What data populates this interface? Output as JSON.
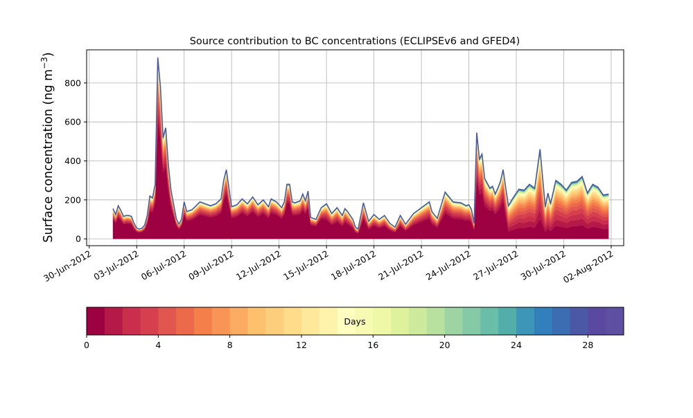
{
  "chart_data": {
    "type": "area",
    "stacked": true,
    "title": "Source contribution to BC concentrations (ECLIPSEv6 and GFED4)",
    "ylabel": "Surface concentration (ng m",
    "ylabel_sup": "−3",
    "ylabel_close": ")",
    "xlabel": "",
    "ylim": [
      -35,
      970
    ],
    "xlim": [
      "2012-06-29T20:00",
      "2012-08-02T19:00"
    ],
    "yticks": [
      0,
      200,
      400,
      600,
      800
    ],
    "xticks": [
      "30-Jun-2012",
      "03-Jul-2012",
      "06-Jul-2012",
      "09-Jul-2012",
      "12-Jul-2012",
      "15-Jul-2012",
      "18-Jul-2012",
      "21-Jul-2012",
      "24-Jul-2012",
      "27-Jul-2012",
      "30-Jul-2012",
      "02-Aug-2012"
    ],
    "xtick_dates": [
      "2012-06-30",
      "2012-07-03",
      "2012-07-06",
      "2012-07-09",
      "2012-07-12",
      "2012-07-15",
      "2012-07-18",
      "2012-07-21",
      "2012-07-24",
      "2012-07-27",
      "2012-07-30",
      "2012-08-02"
    ],
    "grid": true,
    "total": {
      "x": [
        "2012-07-01T12:00",
        "2012-07-01T16:00",
        "2012-07-01T20:00",
        "2012-07-02T00:00",
        "2012-07-02T04:00",
        "2012-07-02T08:00",
        "2012-07-02T12:00",
        "2012-07-02T16:00",
        "2012-07-02T20:00",
        "2012-07-03T00:00",
        "2012-07-03T04:00",
        "2012-07-03T08:00",
        "2012-07-03T12:00",
        "2012-07-03T16:00",
        "2012-07-03T20:00",
        "2012-07-04T00:00",
        "2012-07-04T04:00",
        "2012-07-04T08:00",
        "2012-07-04T12:00",
        "2012-07-04T16:00",
        "2012-07-04T20:00",
        "2012-07-05T00:00",
        "2012-07-05T04:00",
        "2012-07-05T12:00",
        "2012-07-05T16:00",
        "2012-07-05T20:00",
        "2012-07-06T00:00",
        "2012-07-06T04:00",
        "2012-07-06T12:00",
        "2012-07-07T00:00",
        "2012-07-07T12:00",
        "2012-07-07T16:00",
        "2012-07-08T00:00",
        "2012-07-08T08:00",
        "2012-07-08T12:00",
        "2012-07-08T16:00",
        "2012-07-08T20:00",
        "2012-07-09T00:00",
        "2012-07-09T08:00",
        "2012-07-09T16:00",
        "2012-07-10T00:00",
        "2012-07-10T08:00",
        "2012-07-10T16:00",
        "2012-07-11T00:00",
        "2012-07-11T08:00",
        "2012-07-11T12:00",
        "2012-07-11T20:00",
        "2012-07-12T04:00",
        "2012-07-12T08:00",
        "2012-07-12T12:00",
        "2012-07-12T16:00",
        "2012-07-12T20:00",
        "2012-07-13T00:00",
        "2012-07-13T08:00",
        "2012-07-13T12:00",
        "2012-07-13T16:00",
        "2012-07-13T20:00",
        "2012-07-14T00:00",
        "2012-07-14T08:00",
        "2012-07-14T16:00",
        "2012-07-15T00:00",
        "2012-07-15T08:00",
        "2012-07-15T16:00",
        "2012-07-16T00:00",
        "2012-07-16T04:00",
        "2012-07-16T08:00",
        "2012-07-16T16:00",
        "2012-07-16T20:00",
        "2012-07-17T00:00",
        "2012-07-17T08:00",
        "2012-07-17T16:00",
        "2012-07-18T00:00",
        "2012-07-18T08:00",
        "2012-07-18T16:00",
        "2012-07-19T00:00",
        "2012-07-19T08:00",
        "2012-07-19T16:00",
        "2012-07-20T00:00",
        "2012-07-20T12:00",
        "2012-07-21T00:00",
        "2012-07-21T08:00",
        "2012-07-21T12:00",
        "2012-07-21T16:00",
        "2012-07-22T00:00",
        "2012-07-22T12:00",
        "2012-07-23T00:00",
        "2012-07-23T12:00",
        "2012-07-23T20:00",
        "2012-07-24T00:00",
        "2012-07-24T04:00",
        "2012-07-24T08:00",
        "2012-07-24T12:00",
        "2012-07-24T16:00",
        "2012-07-24T20:00",
        "2012-07-25T00:00",
        "2012-07-25T08:00",
        "2012-07-25T12:00",
        "2012-07-25T16:00",
        "2012-07-25T20:00",
        "2012-07-26T00:00",
        "2012-07-26T04:00",
        "2012-07-26T12:00",
        "2012-07-26T20:00",
        "2012-07-27T04:00",
        "2012-07-27T12:00",
        "2012-07-27T20:00",
        "2012-07-28T04:00",
        "2012-07-28T12:00",
        "2012-07-28T20:00",
        "2012-07-29T00:00",
        "2012-07-29T04:00",
        "2012-07-29T12:00",
        "2012-07-29T20:00",
        "2012-07-30T04:00",
        "2012-07-30T12:00",
        "2012-07-30T20:00",
        "2012-07-31T04:00",
        "2012-07-31T12:00",
        "2012-07-31T20:00",
        "2012-08-01T04:00",
        "2012-08-01T12:00",
        "2012-08-01T20:00"
      ],
      "y": [
        155,
        125,
        170,
        145,
        115,
        120,
        120,
        115,
        80,
        55,
        50,
        55,
        70,
        120,
        220,
        210,
        280,
        930,
        780,
        520,
        570,
        380,
        250,
        105,
        75,
        100,
        190,
        140,
        150,
        190,
        175,
        170,
        180,
        205,
        300,
        355,
        260,
        165,
        175,
        205,
        180,
        215,
        175,
        200,
        165,
        205,
        190,
        160,
        190,
        280,
        280,
        190,
        185,
        195,
        230,
        195,
        245,
        110,
        100,
        160,
        180,
        130,
        160,
        120,
        155,
        140,
        100,
        60,
        50,
        185,
        90,
        125,
        100,
        120,
        80,
        60,
        120,
        75,
        130,
        160,
        180,
        190,
        140,
        105,
        240,
        190,
        185,
        170,
        175,
        150,
        80,
        545,
        410,
        435,
        310,
        260,
        270,
        230,
        260,
        295,
        355,
        170,
        215,
        255,
        250,
        280,
        260,
        460,
        165,
        235,
        180,
        300,
        280,
        250,
        290,
        295,
        320,
        235,
        280,
        265,
        225,
        230
      ],
      "z_bottom_band": 1.0
    },
    "colorbar": {
      "label": "Days",
      "min": 0,
      "max": 30,
      "ticks": [
        0,
        4,
        8,
        12,
        16,
        20,
        24,
        28
      ],
      "colors": [
        "#9e0142",
        "#b41947",
        "#c92e4c",
        "#d6404e",
        "#e1564f",
        "#ec6a4a",
        "#f57f4a",
        "#f89556",
        "#fbab62",
        "#fdc06d",
        "#fdce7c",
        "#fedc8a",
        "#fee89a",
        "#fff2aa",
        "#fffebe",
        "#f7fbb2",
        "#eef8a6",
        "#dff19d",
        "#cdea9d",
        "#b8e1a0",
        "#9dd4a4",
        "#84caa7",
        "#6abea7",
        "#53ada9",
        "#3d96b6",
        "#3280bb",
        "#3c6db3",
        "#4b58a6",
        "#5a49a0",
        "#5e4fa2"
      ]
    },
    "outline_color": "#4a5aa1"
  }
}
